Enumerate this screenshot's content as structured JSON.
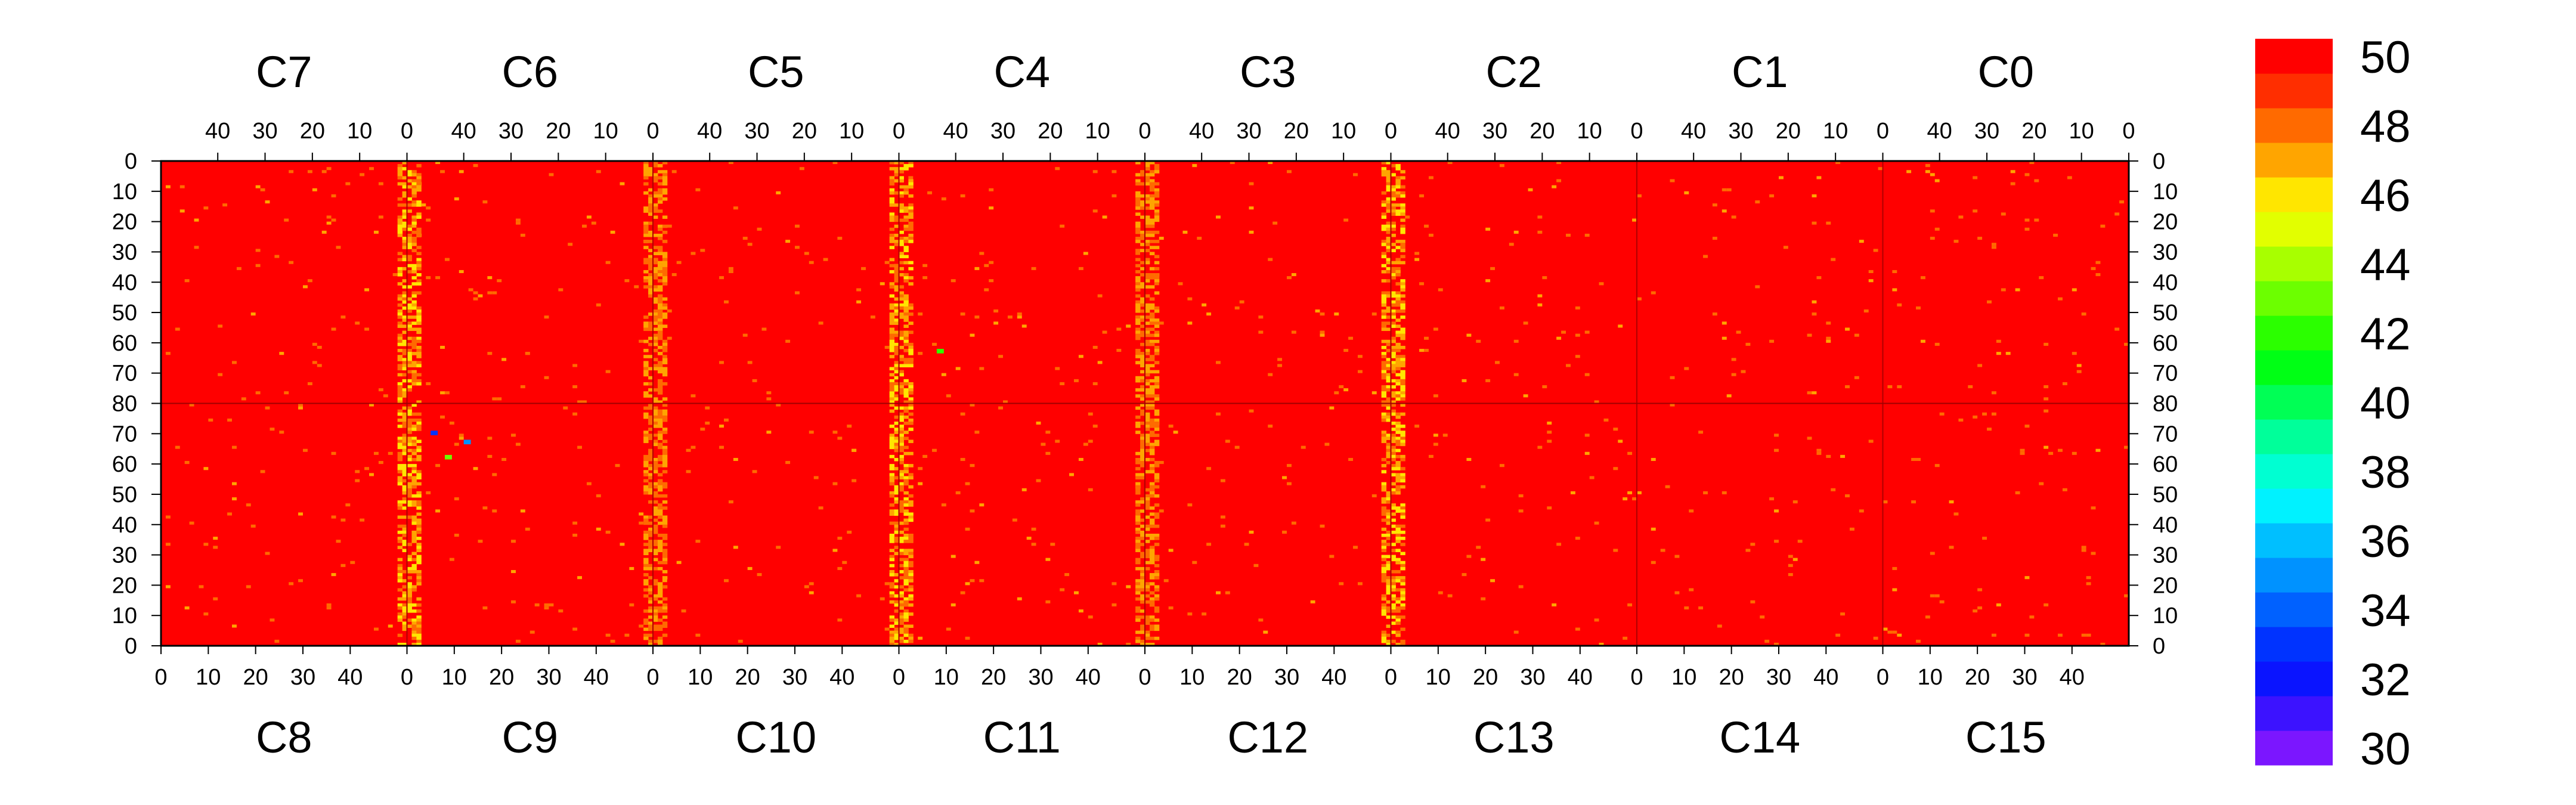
{
  "chart_data": {
    "type": "heatmap",
    "top_chip_labels": [
      "C7",
      "C6",
      "C5",
      "C4",
      "C3",
      "C2",
      "C1",
      "C0"
    ],
    "bottom_chip_labels": [
      "C8",
      "C9",
      "C10",
      "C11",
      "C12",
      "C13",
      "C14",
      "C15"
    ],
    "top_x_ticks": [
      "40",
      "30",
      "20",
      "10",
      "0"
    ],
    "bottom_x_ticks": [
      "0",
      "10",
      "20",
      "30",
      "40"
    ],
    "y_ticks_upper": [
      "0",
      "10",
      "20",
      "30",
      "40",
      "50",
      "60",
      "70",
      "80"
    ],
    "y_ticks_lower": [
      "70",
      "60",
      "50",
      "40",
      "30",
      "20",
      "10",
      "0"
    ],
    "columns_per_chip": 52,
    "rows_per_half": 80,
    "zlim": [
      30,
      50
    ],
    "colorbar_ticks": [
      "50",
      "48",
      "46",
      "44",
      "42",
      "40",
      "38",
      "36",
      "34",
      "32",
      "30"
    ],
    "colorbar_levels": [
      {
        "from": 30,
        "to": 31,
        "color": "#7b16ff"
      },
      {
        "from": 31,
        "to": 32,
        "color": "#3c12ff"
      },
      {
        "from": 32,
        "to": 33,
        "color": "#0a14ff"
      },
      {
        "from": 33,
        "to": 34,
        "color": "#0033ff"
      },
      {
        "from": 34,
        "to": 35,
        "color": "#0061ff"
      },
      {
        "from": 35,
        "to": 36,
        "color": "#0092ff"
      },
      {
        "from": 36,
        "to": 37,
        "color": "#00bfff"
      },
      {
        "from": 37,
        "to": 38,
        "color": "#00f2ff"
      },
      {
        "from": 38,
        "to": 39,
        "color": "#00ffd2"
      },
      {
        "from": 39,
        "to": 40,
        "color": "#00ff9a"
      },
      {
        "from": 40,
        "to": 41,
        "color": "#00ff55"
      },
      {
        "from": 41,
        "to": 42,
        "color": "#00ff15"
      },
      {
        "from": 42,
        "to": 43,
        "color": "#2bff00"
      },
      {
        "from": 43,
        "to": 44,
        "color": "#6cff00"
      },
      {
        "from": 44,
        "to": 45,
        "color": "#a8ff00"
      },
      {
        "from": 45,
        "to": 46,
        "color": "#e2ff00"
      },
      {
        "from": 46,
        "to": 47,
        "color": "#ffe600"
      },
      {
        "from": 47,
        "to": 48,
        "color": "#ffa500"
      },
      {
        "from": 48,
        "to": 49,
        "color": "#ff6a00"
      },
      {
        "from": 49,
        "to": 50,
        "color": "#ff2e00"
      },
      {
        "from": 50,
        "to": 51,
        "color": "#ff0000"
      }
    ],
    "background_value": 50,
    "hot_columns": [
      {
        "chip_top": "C6",
        "chip_bottom": "C9",
        "side": "left-edge",
        "typical_values": [
          46,
          47,
          48
        ]
      },
      {
        "chip_top": "C5",
        "chip_bottom": "C10",
        "side": "left-edge",
        "typical_values": [
          47,
          48
        ]
      },
      {
        "chip_top": "C4",
        "chip_bottom": "C11",
        "side": "left-edge",
        "typical_values": [
          46,
          47,
          48
        ]
      },
      {
        "chip_top": "C3",
        "chip_bottom": "C12",
        "side": "left-edge",
        "typical_values": [
          47,
          48
        ]
      },
      {
        "chip_top": "C2",
        "chip_bottom": "C13",
        "side": "left-edge",
        "typical_values": [
          46,
          47,
          48
        ]
      }
    ],
    "notable_points": [
      {
        "chip": "C9",
        "x": 5,
        "row": 70,
        "value": 33
      },
      {
        "chip": "C9",
        "x": 12,
        "row": 67,
        "value": 35
      },
      {
        "chip": "C4",
        "x": 8,
        "row": 62,
        "value": 42
      },
      {
        "chip": "C9",
        "x": 8,
        "row": 62,
        "value": 43
      }
    ]
  }
}
